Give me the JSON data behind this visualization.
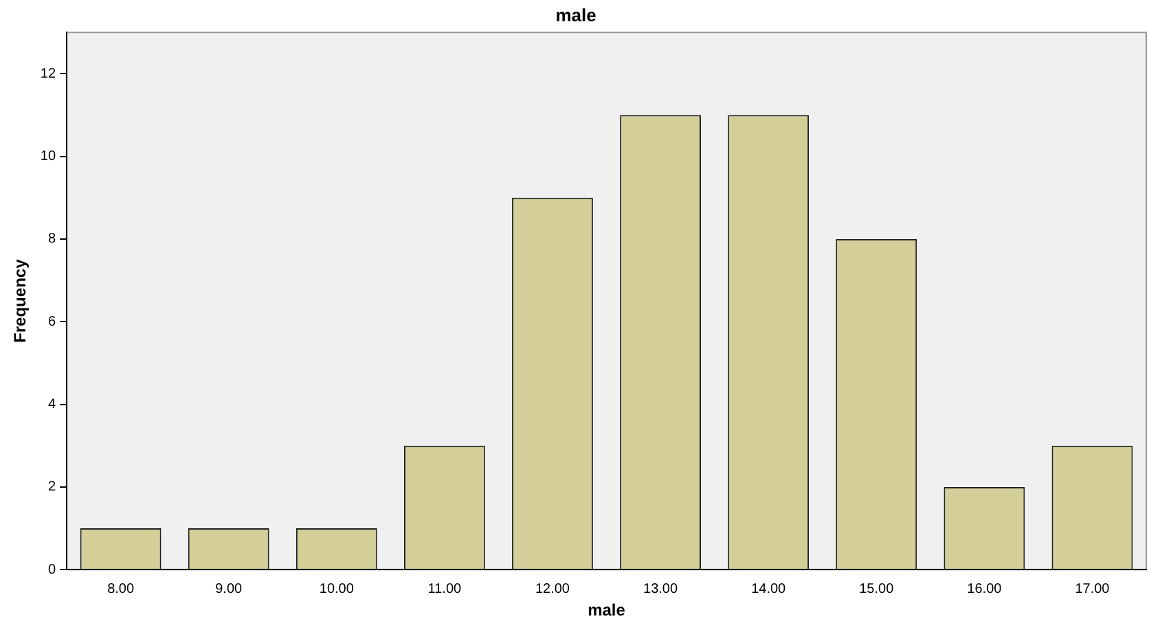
{
  "chart_data": {
    "type": "bar",
    "title": "male",
    "xlabel": "male",
    "ylabel": "Frequency",
    "categories": [
      "8.00",
      "9.00",
      "10.00",
      "11.00",
      "12.00",
      "13.00",
      "14.00",
      "15.00",
      "16.00",
      "17.00"
    ],
    "values": [
      1,
      1,
      1,
      3,
      9,
      11,
      11,
      8,
      2,
      3
    ],
    "color": "#d4cf98",
    "ylim": [
      0,
      13
    ],
    "yticks": [
      0,
      2,
      4,
      6,
      8,
      10,
      12
    ],
    "grid": false,
    "legend": false
  }
}
